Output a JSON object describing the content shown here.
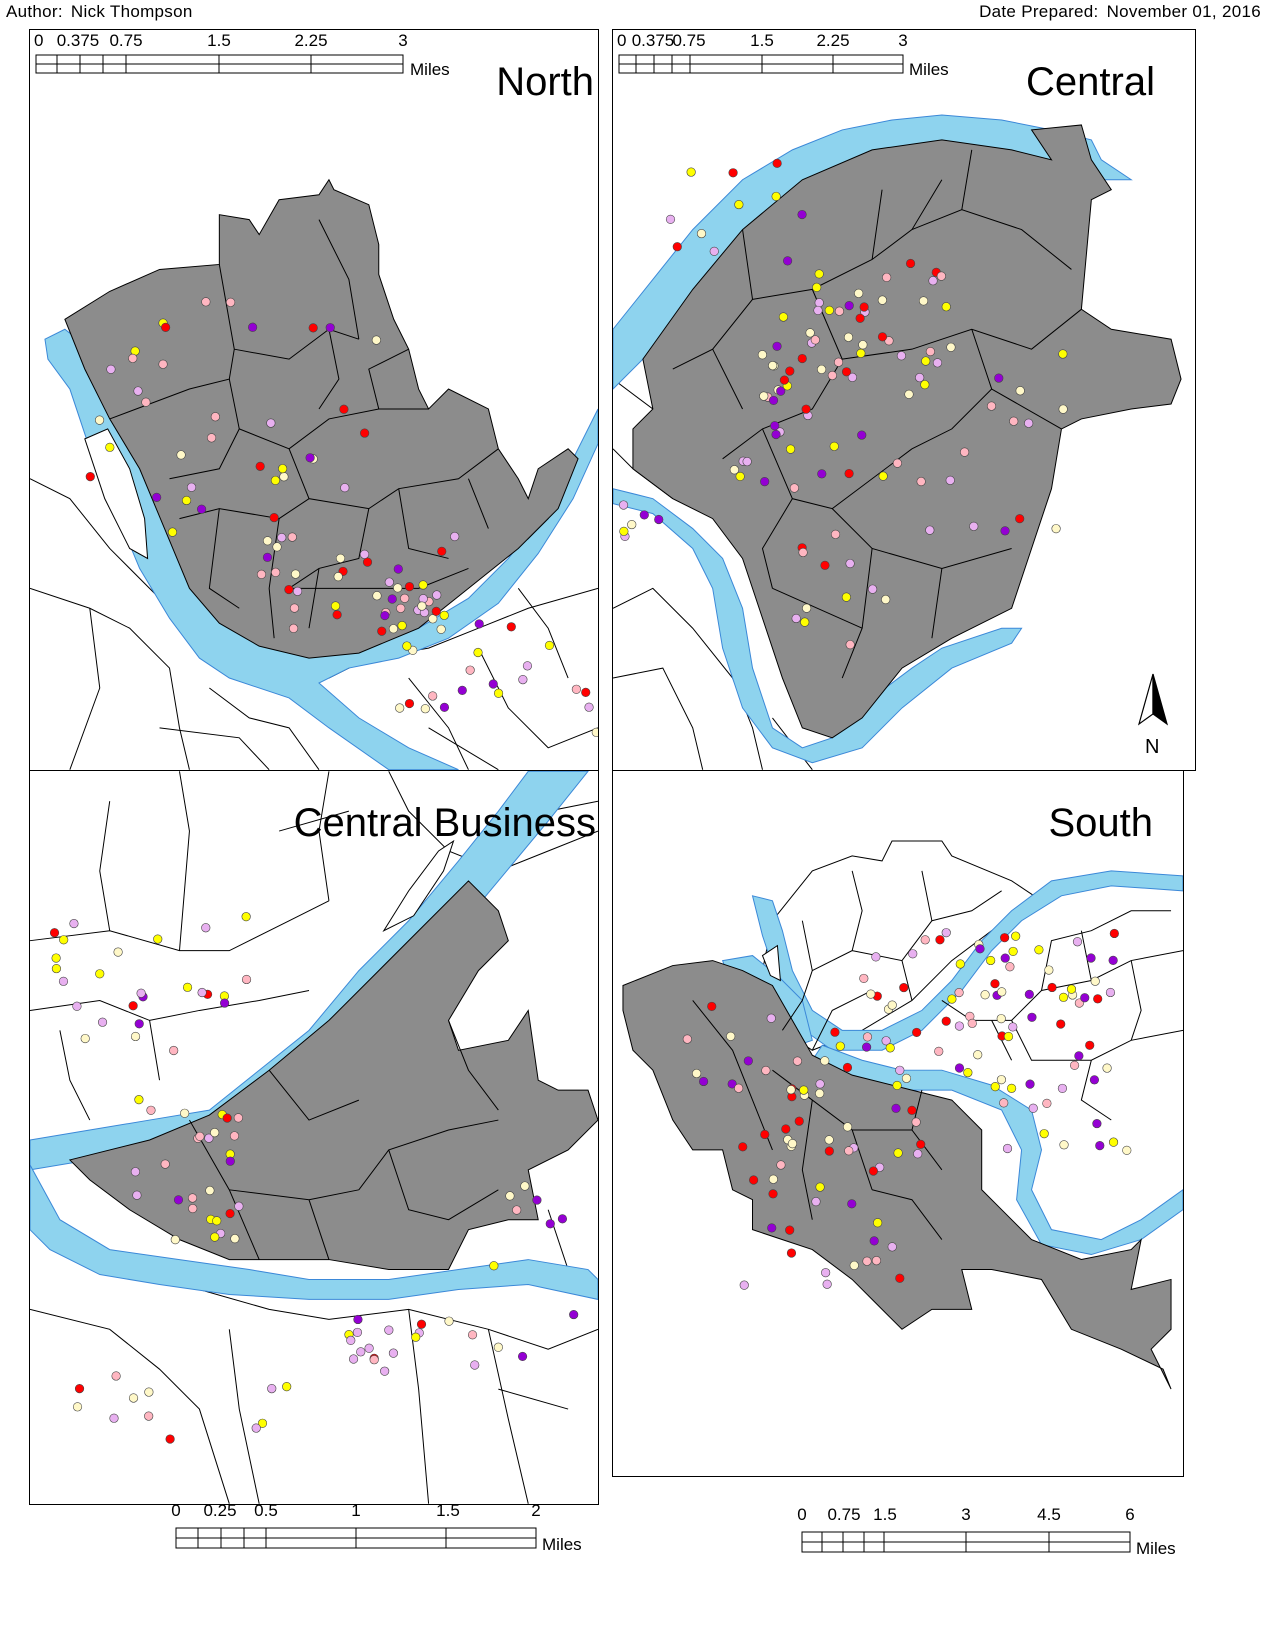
{
  "header": {
    "author_label": "Author:",
    "author": "Nick Thompson",
    "date_label": "Date Prepared:",
    "date": "November 01, 2016"
  },
  "panels": {
    "north": {
      "title": "North"
    },
    "central": {
      "title": "Central"
    },
    "central_business": {
      "title": "Central Business"
    },
    "south": {
      "title": "South"
    }
  },
  "north_arrow": {
    "label": "N"
  },
  "scale_bars": {
    "north": {
      "ticks": [
        "0",
        "0.375",
        "0.75",
        "1.5",
        "2.25",
        "3"
      ],
      "unit": "Miles"
    },
    "central": {
      "ticks": [
        "0",
        "0.375",
        "0.75",
        "1.5",
        "2.25",
        "3"
      ],
      "unit": "Miles"
    },
    "central_business": {
      "ticks": [
        "0",
        "0.25",
        "0.5",
        "1",
        "1.5",
        "2"
      ],
      "unit": "Miles"
    },
    "south": {
      "ticks": [
        "0",
        "0.75",
        "1.5",
        "3",
        "4.5",
        "6"
      ],
      "unit": "Miles"
    }
  },
  "colors": {
    "land": "#8c8c8c",
    "water": "#8ed3ee",
    "water_edge": "#3b88d8",
    "boundary": "#000000",
    "points": [
      "#9400d3",
      "#ff0000",
      "#ffff00",
      "#ffb6c1",
      "#e8b0f0",
      "#fff8c8"
    ]
  }
}
